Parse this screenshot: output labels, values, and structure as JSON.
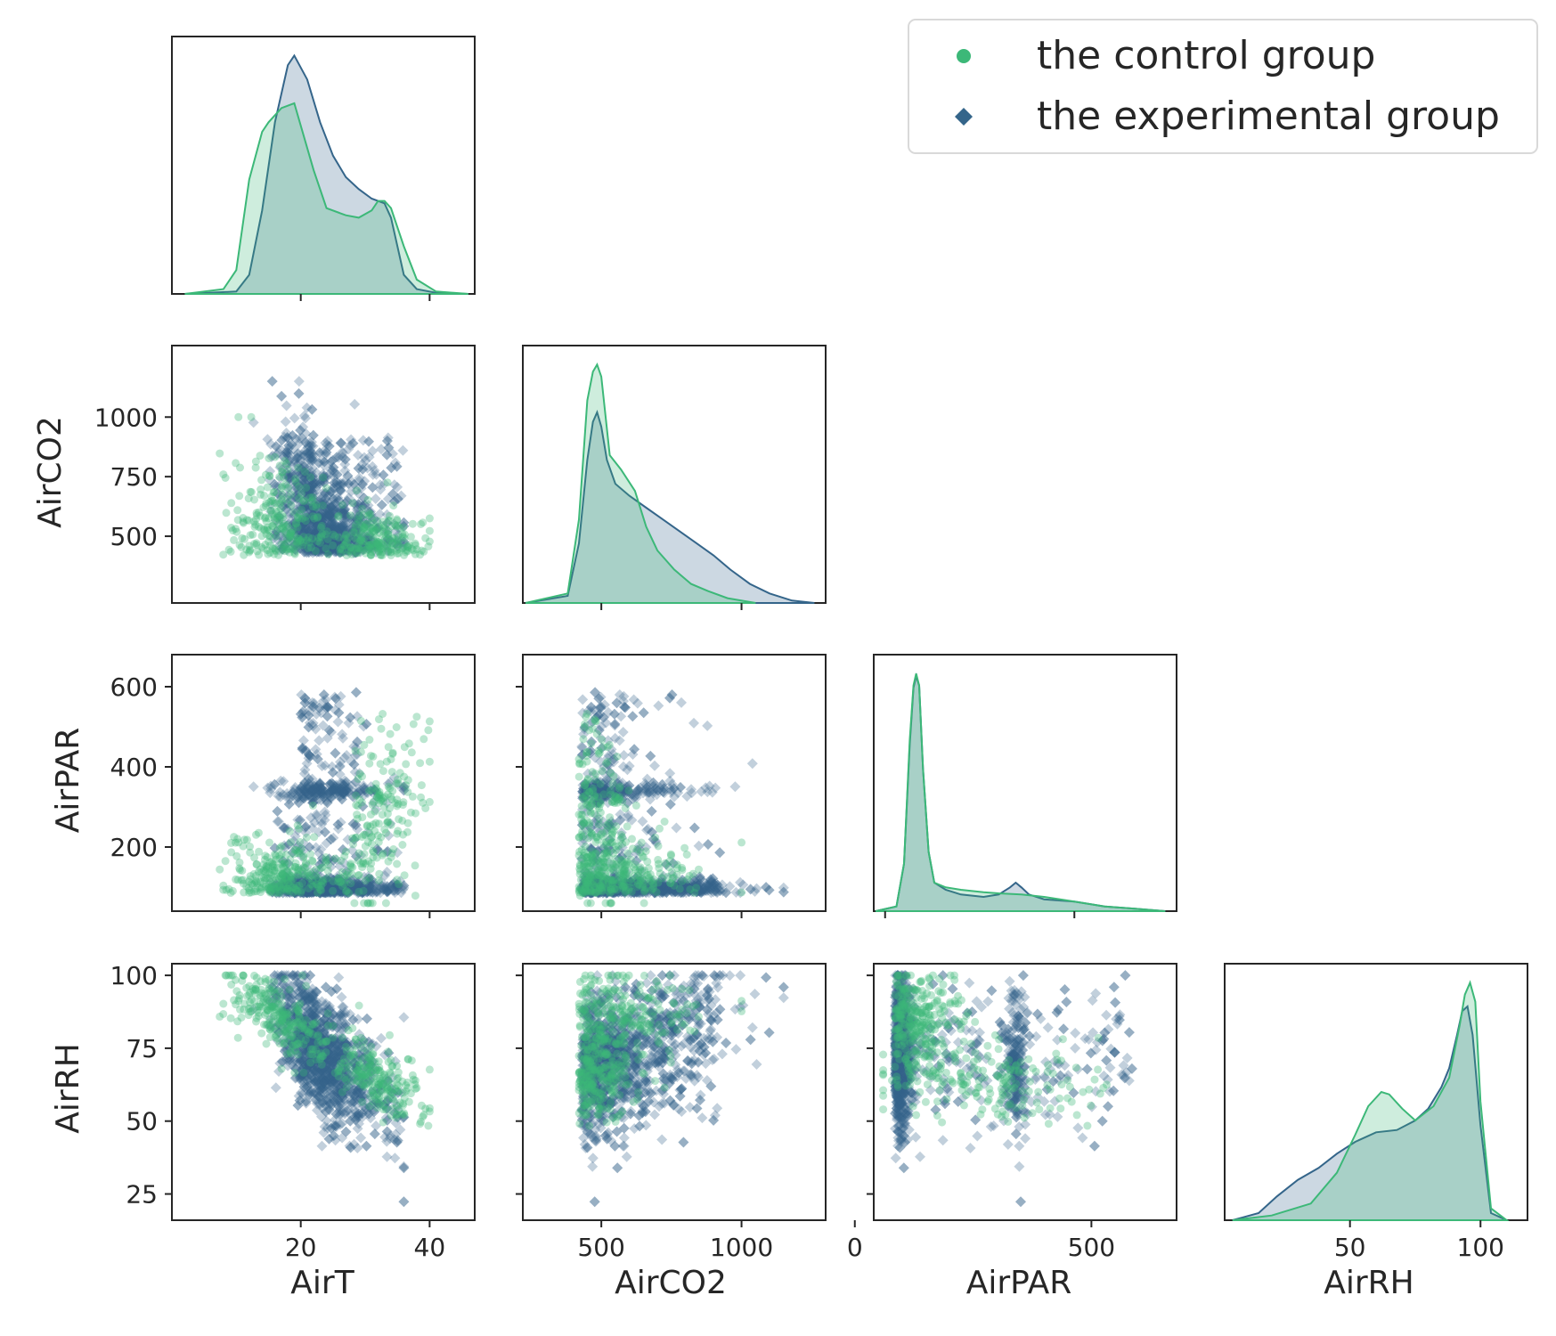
{
  "chart_data": {
    "type": "scatter",
    "kind": "pairplot-corner",
    "variables": [
      "AirT",
      "AirCO2",
      "AirPAR",
      "AirRH"
    ],
    "axis_labels": {
      "x": [
        "AirT",
        "AirCO2",
        "AirPAR",
        "AirRH"
      ],
      "y": [
        "",
        "AirCO2",
        "AirPAR",
        "AirRH"
      ]
    },
    "ranges": {
      "AirT": [
        0,
        47
      ],
      "AirCO2": [
        220,
        1300
      ],
      "AirPAR": [
        40,
        680
      ],
      "AirRH": [
        16,
        104
      ],
      "AirPAR_diag": [
        -30,
        770
      ],
      "AirRH_diag": [
        2,
        118
      ]
    },
    "ticks": {
      "AirT": [
        20,
        40
      ],
      "AirCO2_x": [
        500,
        1000
      ],
      "AirCO2_y": [
        500,
        750,
        1000
      ],
      "AirPAR_x": [
        0,
        500
      ],
      "AirPAR_y": [
        200,
        400,
        600
      ],
      "AirRH_x": [
        50,
        100
      ],
      "AirRH_y": [
        25,
        50,
        75,
        100
      ]
    },
    "legend": {
      "position": "upper right",
      "entries": [
        {
          "label": "the control group",
          "marker": "circle",
          "color": "#3cb878"
        },
        {
          "label": "the experimental group",
          "marker": "diamond",
          "color": "#34658a"
        }
      ]
    },
    "series": [
      {
        "name": "the control group",
        "color": "#3cb878",
        "kde": {
          "AirT": {
            "x": [
              2,
              8,
              10,
              12,
              14,
              15,
              17,
              19,
              22,
              24,
              27,
              29,
              31,
              32,
              33,
              34,
              36,
              38,
              41,
              46
            ],
            "y": [
              0,
              0.02,
              0.1,
              0.48,
              0.68,
              0.72,
              0.78,
              0.8,
              0.52,
              0.36,
              0.33,
              0.32,
              0.35,
              0.39,
              0.39,
              0.36,
              0.2,
              0.06,
              0.01,
              0
            ]
          },
          "AirCO2": {
            "x": [
              230,
              380,
              420,
              450,
              470,
              485,
              500,
              530,
              570,
              620,
              660,
              700,
              760,
              820,
              880,
              950,
              1050
            ],
            "y": [
              0,
              0.04,
              0.35,
              0.85,
              0.97,
              1.0,
              0.95,
              0.62,
              0.56,
              0.47,
              0.32,
              0.22,
              0.14,
              0.08,
              0.05,
              0.02,
              0
            ]
          },
          "AirPAR": {
            "x": [
              -25,
              30,
              50,
              65,
              75,
              82,
              90,
              100,
              115,
              130,
              160,
              200,
              260,
              300,
              360,
              420,
              500,
              580,
              660,
              740
            ],
            "y": [
              0,
              0.02,
              0.2,
              0.72,
              0.95,
              1.0,
              0.95,
              0.6,
              0.25,
              0.12,
              0.1,
              0.09,
              0.08,
              0.075,
              0.07,
              0.06,
              0.04,
              0.02,
              0.01,
              0
            ]
          },
          "AirRH": {
            "x": [
              5,
              20,
              35,
              45,
              52,
              57,
              62,
              65,
              70,
              75,
              82,
              88,
              92,
              94,
              96,
              98,
              100,
              104,
              110
            ],
            "y": [
              0,
              0.02,
              0.07,
              0.2,
              0.36,
              0.48,
              0.54,
              0.53,
              0.47,
              0.42,
              0.48,
              0.6,
              0.82,
              0.95,
              1.0,
              0.92,
              0.5,
              0.05,
              0
            ]
          }
        }
      },
      {
        "name": "the experimental group",
        "color": "#34658a",
        "kde": {
          "AirT": {
            "x": [
              2,
              10,
              12,
              14,
              16,
              18,
              19,
              21,
              23,
              25,
              27,
              29,
              31,
              33,
              34,
              35,
              36,
              38,
              41,
              46
            ],
            "y": [
              0,
              0.01,
              0.08,
              0.35,
              0.72,
              0.96,
              1.0,
              0.9,
              0.72,
              0.58,
              0.49,
              0.44,
              0.4,
              0.38,
              0.32,
              0.2,
              0.08,
              0.02,
              0.005,
              0
            ]
          },
          "AirCO2": {
            "x": [
              230,
              380,
              420,
              450,
              470,
              485,
              500,
              520,
              550,
              600,
              660,
              720,
              780,
              840,
              900,
              960,
              1030,
              1100,
              1180,
              1260
            ],
            "y": [
              0,
              0.03,
              0.25,
              0.6,
              0.76,
              0.8,
              0.74,
              0.6,
              0.5,
              0.45,
              0.4,
              0.35,
              0.3,
              0.25,
              0.2,
              0.14,
              0.08,
              0.04,
              0.01,
              0
            ]
          },
          "AirPAR": {
            "x": [
              -25,
              30,
              50,
              65,
              75,
              82,
              90,
              100,
              115,
              130,
              160,
              200,
              260,
              300,
              330,
              345,
              360,
              380,
              420,
              500,
              580,
              660,
              740
            ],
            "y": [
              0,
              0.02,
              0.2,
              0.7,
              0.94,
              0.99,
              0.95,
              0.6,
              0.25,
              0.12,
              0.09,
              0.07,
              0.06,
              0.07,
              0.1,
              0.12,
              0.1,
              0.07,
              0.05,
              0.04,
              0.02,
              0.01,
              0
            ]
          },
          "AirRH": {
            "x": [
              5,
              15,
              22,
              30,
              38,
              45,
              52,
              60,
              68,
              75,
              80,
              85,
              88,
              91,
              93,
              95,
              97,
              100,
              104,
              110
            ],
            "y": [
              0,
              0.03,
              0.1,
              0.17,
              0.22,
              0.28,
              0.33,
              0.37,
              0.38,
              0.42,
              0.47,
              0.56,
              0.64,
              0.78,
              0.88,
              0.9,
              0.78,
              0.4,
              0.03,
              0
            ]
          }
        }
      }
    ]
  }
}
